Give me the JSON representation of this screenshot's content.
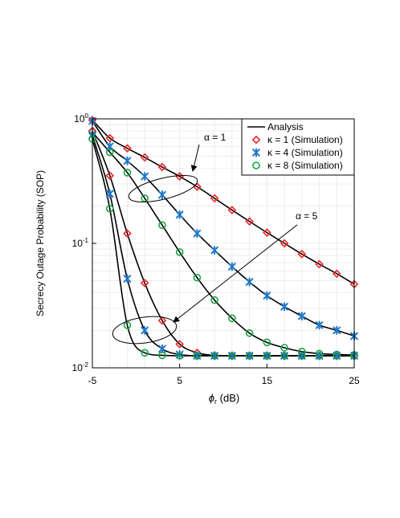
{
  "chart_data": {
    "type": "line",
    "title": "",
    "xlabel_symbol": "ϕ",
    "xlabel_sub": "r",
    "xlabel_unit": " (dB)",
    "ylabel": "Secrecy Outage Probability (SOP)",
    "xlim": [
      -5,
      25
    ],
    "ylim": [
      0.01,
      1
    ],
    "y_scale": "log",
    "x_ticks": [
      -5,
      5,
      15,
      25
    ],
    "x_tick_labels": [
      "-5",
      "5",
      "15",
      "25"
    ],
    "y_ticks": [
      {
        "value": 1,
        "base": "10",
        "exp": "0"
      },
      {
        "value": 0.1,
        "base": "10",
        "exp": "-1"
      },
      {
        "value": 0.01,
        "base": "10",
        "exp": "-2"
      }
    ],
    "grid": true,
    "legend_position": "top-right",
    "legend": [
      {
        "label": "Analysis",
        "marker": "line",
        "color": "#000000"
      },
      {
        "label": "κ = 1 (Simulation)",
        "marker": "diamond",
        "color": "#e8262a"
      },
      {
        "label": "κ = 4 (Simulation)",
        "marker": "asterisk",
        "color": "#1f77c8"
      },
      {
        "label": "κ = 8 (Simulation)",
        "marker": "circle",
        "color": "#1aa34a"
      }
    ],
    "annotations": [
      {
        "text": "α = 1",
        "points_to": "α = 1 curve group"
      },
      {
        "text": "α = 5",
        "points_to": "α = 5 curve group"
      }
    ],
    "series": [
      {
        "kappa": 1,
        "alpha": 1,
        "marker": "diamond",
        "color": "#e8262a",
        "x": [
          -5,
          -3,
          -1,
          1,
          3,
          5,
          7,
          9,
          11,
          13,
          15,
          17,
          19,
          21,
          23,
          25
        ],
        "y": [
          0.98,
          0.7,
          0.58,
          0.49,
          0.41,
          0.345,
          0.285,
          0.23,
          0.185,
          0.15,
          0.122,
          0.1,
          0.082,
          0.068,
          0.057,
          0.047
        ]
      },
      {
        "kappa": 4,
        "alpha": 1,
        "marker": "asterisk",
        "color": "#1f77c8",
        "x": [
          -5,
          -3,
          -1,
          1,
          3,
          5,
          7,
          9,
          11,
          13,
          15,
          17,
          19,
          21,
          23,
          25
        ],
        "y": [
          0.96,
          0.6,
          0.46,
          0.345,
          0.245,
          0.17,
          0.12,
          0.088,
          0.065,
          0.049,
          0.038,
          0.031,
          0.026,
          0.022,
          0.02,
          0.018
        ]
      },
      {
        "kappa": 8,
        "alpha": 1,
        "marker": "circle",
        "color": "#1aa34a",
        "x": [
          -5,
          -3,
          -1,
          1,
          3,
          5,
          7,
          9,
          11,
          13,
          15,
          17,
          19,
          21,
          23,
          25
        ],
        "y": [
          0.78,
          0.54,
          0.37,
          0.23,
          0.14,
          0.085,
          0.053,
          0.035,
          0.025,
          0.019,
          0.016,
          0.0145,
          0.0135,
          0.013,
          0.0128,
          0.0127
        ]
      },
      {
        "kappa": 1,
        "alpha": 5,
        "marker": "diamond",
        "color": "#e8262a",
        "x": [
          -5,
          -3,
          -1,
          1,
          3,
          5,
          7,
          9,
          11,
          13,
          15,
          17,
          19,
          21,
          23,
          25
        ],
        "y": [
          0.8,
          0.35,
          0.12,
          0.048,
          0.024,
          0.0155,
          0.0132,
          0.0126,
          0.0125,
          0.0125,
          0.0125,
          0.0125,
          0.0125,
          0.0125,
          0.0125,
          0.0125
        ]
      },
      {
        "kappa": 4,
        "alpha": 5,
        "marker": "asterisk",
        "color": "#1f77c8",
        "x": [
          -5,
          -3,
          -1,
          1,
          3,
          5,
          7,
          9,
          11,
          13,
          15,
          17,
          19,
          21,
          23,
          25
        ],
        "y": [
          0.74,
          0.25,
          0.052,
          0.02,
          0.0142,
          0.0128,
          0.0125,
          0.0125,
          0.0125,
          0.0125,
          0.0125,
          0.0125,
          0.0125,
          0.0125,
          0.0125,
          0.0125
        ]
      },
      {
        "kappa": 8,
        "alpha": 5,
        "marker": "circle",
        "color": "#1aa34a",
        "x": [
          -5,
          -3,
          -1,
          1,
          3,
          5,
          7,
          9,
          11,
          13,
          15,
          17,
          19,
          21,
          23,
          25
        ],
        "y": [
          0.69,
          0.19,
          0.022,
          0.0132,
          0.0126,
          0.0125,
          0.0125,
          0.0125,
          0.0125,
          0.0125,
          0.0125,
          0.0125,
          0.0125,
          0.0125,
          0.0125,
          0.0125
        ]
      }
    ]
  }
}
